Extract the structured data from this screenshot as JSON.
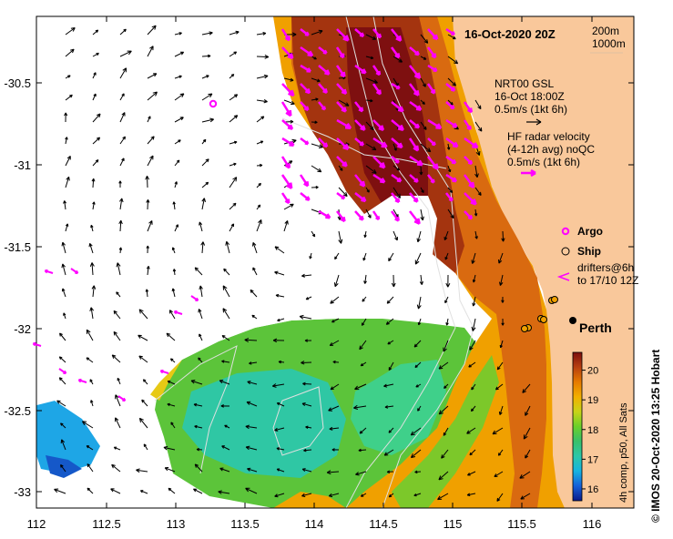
{
  "title": "16-Oct-2020 20Z",
  "isobath_legend": [
    "200m",
    "1000m"
  ],
  "gsl_legend": {
    "line1": "NRT00 GSL",
    "line2": "16-Oct 18:00Z",
    "line3": "0.5m/s (1kt 6h)"
  },
  "hf_legend": {
    "line1": "HF radar velocity",
    "line2": "(4-12h avg) noQC",
    "line3": "0.5m/s (1kt 6h)"
  },
  "markers_legend": {
    "argo": "Argo",
    "ship": "Ship",
    "drifters1": "drifters@6h",
    "drifters2": "to 17/10 12Z"
  },
  "place": "Perth",
  "credit": "© IMOS 20-Oct-2020 13:25 Hobart",
  "colorbar": {
    "label": "4h comp, p50, All Sats",
    "ticks": [
      "16",
      "17",
      "18",
      "19",
      "20"
    ],
    "min": 15.6,
    "max": 20.6
  },
  "x_ticks": [
    "112",
    "112.5",
    "113",
    "113.5",
    "114",
    "114.5",
    "115",
    "115.5",
    "116"
  ],
  "y_ticks": [
    "-30.5",
    "-31",
    "-31.5",
    "-32",
    "-32.5",
    "-33"
  ],
  "colors": {
    "land": "#f9c89b",
    "gsl_arrow": "#000000",
    "hf_arrow": "#ff00ff",
    "argo": "#ff00ff"
  }
}
